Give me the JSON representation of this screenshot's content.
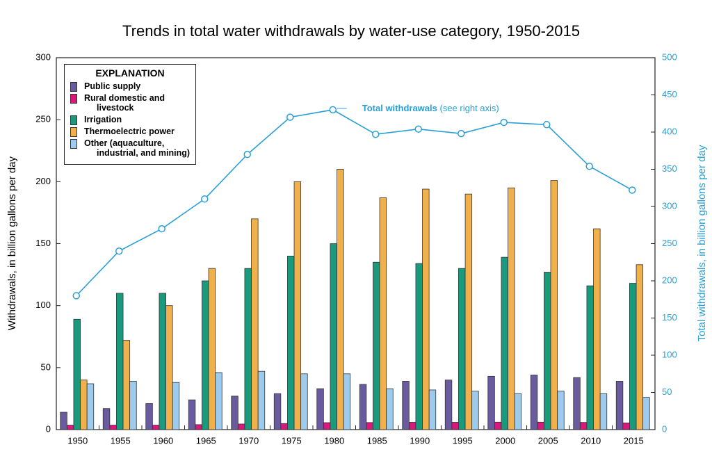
{
  "chart_data": {
    "type": "bar",
    "title": "Trends in total water withdrawals by water-use category, 1950-2015",
    "y_label": "Withdrawals, in billion gallons per day",
    "y2_label": "Total withdrawals, in billion gallons per day",
    "legend_title": "EXPLANATION",
    "annotation": "(see right axis)",
    "categories": [
      "1950",
      "1955",
      "1960",
      "1965",
      "1970",
      "1975",
      "1980",
      "1985",
      "1990",
      "1995",
      "2000",
      "2005",
      "2010",
      "2015"
    ],
    "series": [
      {
        "name": "Public supply",
        "color": "#6a5a9e",
        "values": [
          14,
          17,
          21,
          24,
          27,
          29,
          33,
          36.5,
          39,
          40,
          43,
          44,
          42,
          39
        ]
      },
      {
        "name": "Rural domestic and livestock",
        "color": "#d6197a",
        "values": [
          3.6,
          3.6,
          3.6,
          4.0,
          4.5,
          4.9,
          5.6,
          5.7,
          5.9,
          5.9,
          6.0,
          6.0,
          5.8,
          5.4
        ]
      },
      {
        "name": "Irrigation",
        "color": "#1a9a7d",
        "values": [
          89,
          110,
          110,
          120,
          130,
          140,
          150,
          135,
          134,
          130,
          139,
          127,
          116,
          118
        ]
      },
      {
        "name": "Thermoelectric power",
        "color": "#f0b04c",
        "values": [
          40,
          72,
          100,
          130,
          170,
          200,
          210,
          187,
          194,
          190,
          195,
          201,
          162,
          133
        ]
      },
      {
        "name": "Other (aquaculture, industrial, and mining)",
        "color": "#9ccbee",
        "values": [
          37,
          39,
          38,
          46,
          47,
          45,
          45,
          33,
          32,
          31,
          29,
          31,
          29,
          26
        ]
      },
      {
        "name": "Total withdrawals",
        "type": "line",
        "axis": "y2",
        "color": "#2a9fd6",
        "values": [
          180,
          240,
          270,
          310,
          370,
          420,
          430,
          397,
          404,
          398,
          413,
          410,
          354,
          322
        ]
      }
    ],
    "ylim": [
      0,
      300
    ],
    "yticks": [
      0,
      50,
      100,
      150,
      200,
      250,
      300
    ],
    "y2lim": [
      0,
      500
    ],
    "y2ticks": [
      0,
      50,
      100,
      150,
      200,
      250,
      300,
      350,
      400,
      450,
      500
    ]
  }
}
